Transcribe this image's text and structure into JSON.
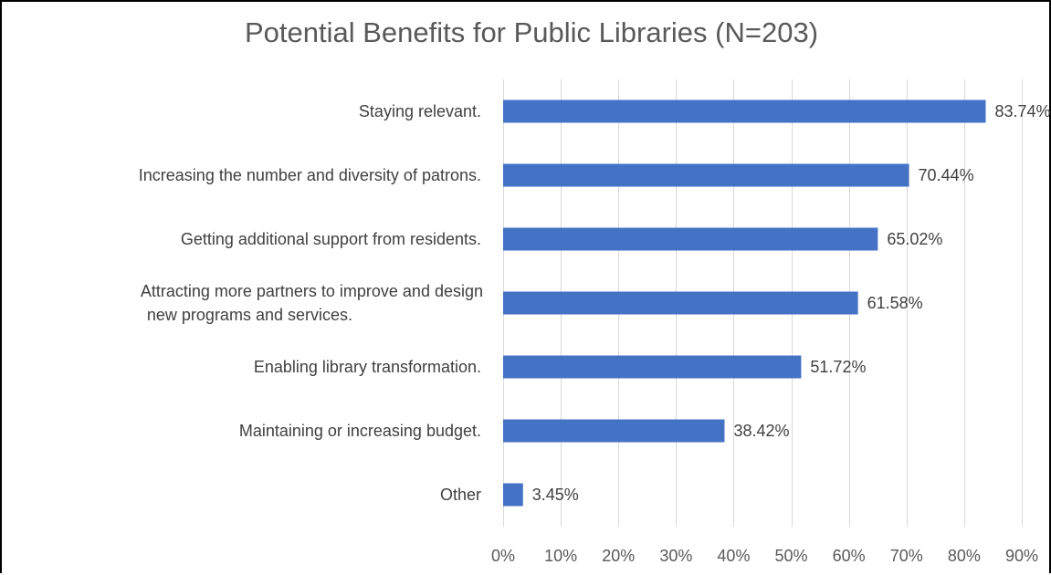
{
  "chart_data": {
    "type": "bar",
    "orientation": "horizontal",
    "title": "Potential Benefits for Public Libraries (N=203)",
    "categories": [
      "Staying relevant.",
      "Increasing the number and diversity of patrons.",
      "Getting additional support from residents.",
      "Attracting more partners to improve and design new programs and services.",
      "Enabling library transformation.",
      "Maintaining or increasing budget.",
      "Other"
    ],
    "values": [
      83.74,
      70.44,
      65.02,
      61.58,
      51.72,
      38.42,
      3.45
    ],
    "data_labels": [
      "83.74%",
      "70.44%",
      "65.02%",
      "61.58%",
      "51.72%",
      "38.42%",
      "3.45%"
    ],
    "xlim": [
      0,
      90
    ],
    "xticks": [
      0,
      10,
      20,
      30,
      40,
      50,
      60,
      70,
      80,
      90
    ],
    "xtick_labels": [
      "0%",
      "10%",
      "20%",
      "30%",
      "40%",
      "50%",
      "60%",
      "70%",
      "80%",
      "90%"
    ],
    "grid": "vertical",
    "legend": "none",
    "colors": {
      "bar": "#4472C4",
      "grid": "#D9D9D9",
      "title": "#595959",
      "text": "#404040"
    }
  }
}
